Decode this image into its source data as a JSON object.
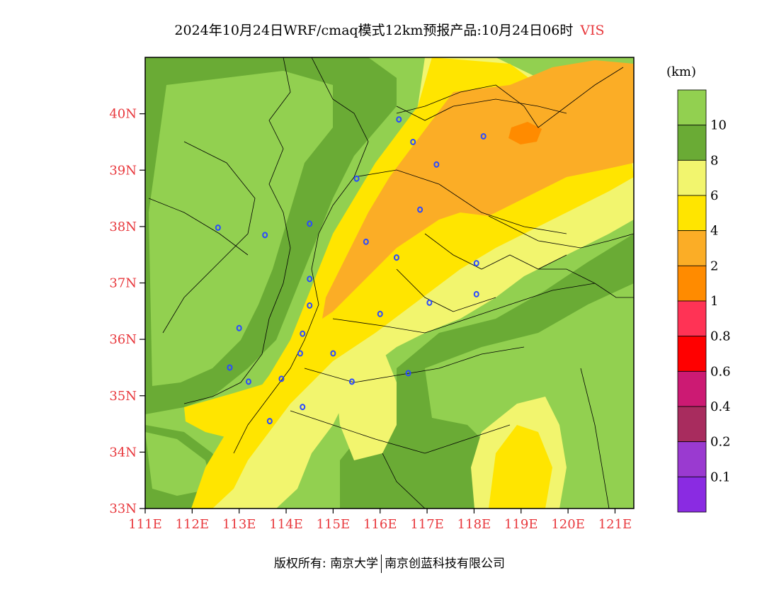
{
  "title": {
    "main": "2024年10月24日WRF/cmaq模式12km预报产品:10月24日06时",
    "variable": "VIS"
  },
  "unit": "(km)",
  "axes": {
    "lat_ticks": [
      "40N",
      "39N",
      "38N",
      "37N",
      "36N",
      "35N",
      "34N",
      "33N"
    ],
    "lon_ticks": [
      "111E",
      "112E",
      "113E",
      "114E",
      "115E",
      "116E",
      "117E",
      "118E",
      "119E",
      "120E",
      "121E"
    ],
    "lat_range": [
      33,
      41
    ],
    "lon_range": [
      111,
      121.4
    ]
  },
  "legend": {
    "labels": [
      "10",
      "8",
      "6",
      "4",
      "2",
      "1",
      "0.8",
      "0.6",
      "0.4",
      "0.2",
      "0.1"
    ],
    "colors": [
      "#92d050",
      "#6aab35",
      "#f2f56e",
      "#ffe500",
      "#fbad26",
      "#ff8b00",
      "#ff3355",
      "#ff0000",
      "#cc1a73",
      "#a82c5e",
      "#9a3ad0",
      "#8a2be2"
    ]
  },
  "footer": {
    "copyright_label": "版权所有:",
    "owner1": "南京大学",
    "owner2": "南京创蓝科技有限公司"
  },
  "colors": {
    "tick_red": "#e8383d",
    "city_marker": "#2b4bff"
  },
  "cities": [
    {
      "lon": 116.4,
      "lat": 39.9
    },
    {
      "lon": 116.7,
      "lat": 39.5
    },
    {
      "lon": 117.2,
      "lat": 39.1
    },
    {
      "lon": 118.2,
      "lat": 39.6
    },
    {
      "lon": 115.5,
      "lat": 38.85
    },
    {
      "lon": 116.85,
      "lat": 38.3
    },
    {
      "lon": 112.55,
      "lat": 37.98
    },
    {
      "lon": 113.55,
      "lat": 37.85
    },
    {
      "lon": 114.5,
      "lat": 38.05
    },
    {
      "lon": 115.7,
      "lat": 37.73
    },
    {
      "lon": 116.35,
      "lat": 37.45
    },
    {
      "lon": 118.05,
      "lat": 37.35
    },
    {
      "lon": 114.5,
      "lat": 37.07
    },
    {
      "lon": 114.5,
      "lat": 36.6
    },
    {
      "lon": 118.05,
      "lat": 36.8
    },
    {
      "lon": 117.05,
      "lat": 36.65
    },
    {
      "lon": 116.0,
      "lat": 36.45
    },
    {
      "lon": 113.0,
      "lat": 36.2
    },
    {
      "lon": 114.35,
      "lat": 36.1
    },
    {
      "lon": 114.3,
      "lat": 35.75
    },
    {
      "lon": 115.0,
      "lat": 35.75
    },
    {
      "lon": 112.8,
      "lat": 35.5
    },
    {
      "lon": 116.6,
      "lat": 35.4
    },
    {
      "lon": 113.9,
      "lat": 35.3
    },
    {
      "lon": 113.2,
      "lat": 35.25
    },
    {
      "lon": 115.4,
      "lat": 35.25
    },
    {
      "lon": 114.35,
      "lat": 34.8
    },
    {
      "lon": 113.65,
      "lat": 34.55
    }
  ]
}
